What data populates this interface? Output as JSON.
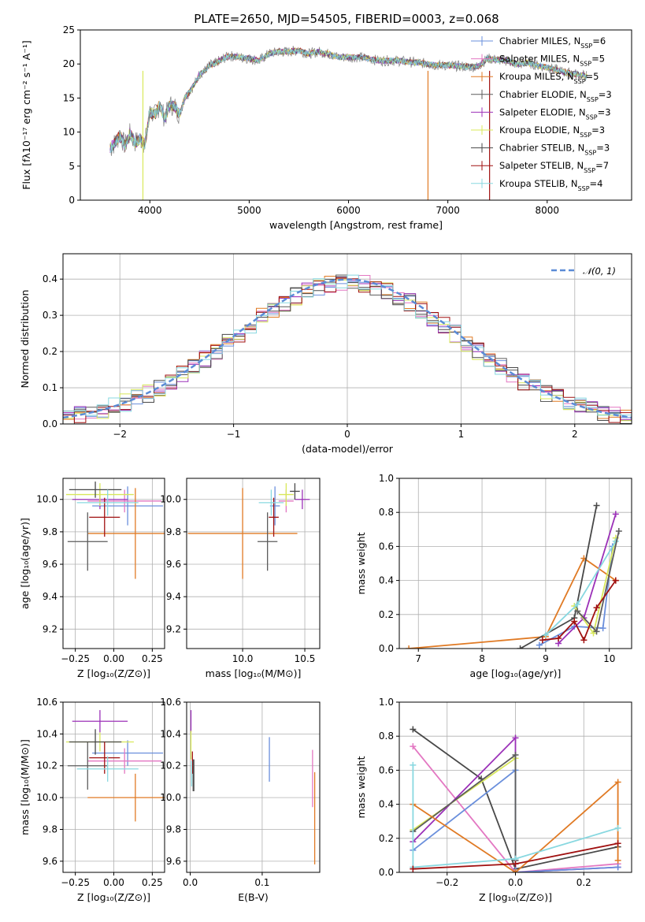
{
  "series": [
    {
      "name": "Chabrier MILES",
      "nssp": "6",
      "color": "#6a8fdc"
    },
    {
      "name": "Salpeter MILES",
      "nssp": "5",
      "color": "#e8e8e8"
    },
    {
      "name": "Kroupa MILES",
      "nssp": "5",
      "color": "#e07a24"
    },
    {
      "name": "Chabrier ELODIE",
      "nssp": "3",
      "color": "#5c5c5c"
    },
    {
      "name": "Salpeter ELODIE",
      "nssp": "3",
      "color": "#9b30b8"
    },
    {
      "name": "Kroupa ELODIE",
      "nssp": "3",
      "color": "#d8e85a"
    },
    {
      "name": "Chabrier STELIB",
      "nssp": "3",
      "color": "#484848"
    },
    {
      "name": "Salpeter STELIB",
      "nssp": "7",
      "color": "#a01010"
    },
    {
      "name": "Kroupa STELIB",
      "nssp": "4",
      "color": "#88d8e0"
    }
  ],
  "chart_data": [
    {
      "type": "line",
      "title": "PLATE=2650, MJD=54505, FIBERID=0003, z=0.068",
      "xlabel": "wavelength [Angstrom, rest frame]",
      "ylabel": "Flux [fλ10⁻¹⁷ erg cm⁻² s⁻¹ A⁻¹]",
      "xlim": [
        3300,
        8850
      ],
      "ylim": [
        0,
        25
      ],
      "xticks": [
        "4000",
        "5000",
        "6000",
        "7000",
        "8000"
      ],
      "yticks": [
        "0",
        "5",
        "10",
        "15",
        "20",
        "25"
      ],
      "legend": "top-right",
      "spectrum_x": [
        3600,
        3650,
        3700,
        3750,
        3800,
        3850,
        3900,
        3950,
        4000,
        4050,
        4100,
        4150,
        4200,
        4250,
        4300,
        4350,
        4400,
        4450,
        4500,
        4550,
        4600,
        4650,
        4700,
        4800,
        4900,
        5000,
        5100,
        5200,
        5300,
        5400,
        5500,
        5600,
        5700,
        5800,
        5900,
        6000,
        6100,
        6200,
        6300,
        6400,
        6500,
        6600,
        6700,
        6800,
        6900,
        7000,
        7100,
        7200,
        7300,
        7400,
        7500,
        7600,
        7700,
        7800,
        7900,
        8000,
        8100,
        8200,
        8300,
        8400
      ],
      "spectrum_y": [
        7.5,
        8.5,
        9.5,
        8.0,
        9.8,
        8.5,
        9.0,
        8.2,
        13.0,
        12.5,
        14.0,
        12.0,
        14.0,
        13.8,
        12.5,
        15.0,
        16.0,
        17.0,
        18.5,
        19.0,
        19.8,
        20.0,
        20.5,
        21.2,
        21.0,
        20.8,
        20.5,
        21.5,
        21.8,
        21.8,
        22.0,
        21.5,
        21.8,
        21.5,
        21.0,
        21.0,
        21.0,
        20.8,
        20.5,
        20.5,
        20.5,
        20.3,
        20.2,
        20.0,
        19.8,
        19.8,
        19.7,
        19.6,
        19.6,
        20.8,
        20.6,
        20.5,
        19.9,
        20.2,
        19.8,
        19.5,
        19.1,
        18.7,
        18.5,
        18.2
      ]
    },
    {
      "type": "area",
      "xlabel": "(data-model)/error",
      "ylabel": "Normed distribution",
      "xlim": [
        -2.5,
        2.5
      ],
      "ylim": [
        0,
        0.47
      ],
      "xticks": [
        "−2",
        "−1",
        "0",
        "1",
        "2"
      ],
      "yticks": [
        "0.0",
        "0.1",
        "0.2",
        "0.3",
        "0.4"
      ],
      "reference_curve": "𝒩(0, 1)",
      "legend": "top-right"
    },
    {
      "type": "scatter",
      "xlabel": "Z [log₁₀(Z/Z⊙)]",
      "ylabel": "age [log₁₀(age/yr)]",
      "xlim": [
        -0.33,
        0.33
      ],
      "ylim": [
        9.08,
        10.13
      ],
      "xticks": [
        "−0.25",
        "0.00",
        "0.25"
      ],
      "yticks": [
        "9.2",
        "9.4",
        "9.6",
        "9.8",
        "10.0"
      ],
      "points": [
        {
          "x": 0.09,
          "xerr": 0.23,
          "y": 9.96,
          "yerr": 0.12,
          "s": 0
        },
        {
          "x": 0.07,
          "xerr": 0.24,
          "y": 9.99,
          "yerr": 0.07,
          "s": 1
        },
        {
          "x": 0.14,
          "xerr": 0.31,
          "y": 9.79,
          "yerr": 0.28,
          "s": 2
        },
        {
          "x": -0.17,
          "xerr": 0.13,
          "y": 9.74,
          "yerr": 0.18,
          "s": 3
        },
        {
          "x": -0.09,
          "xerr": 0.18,
          "y": 10.0,
          "yerr": 0.06,
          "s": 4
        },
        {
          "x": -0.09,
          "xerr": 0.22,
          "y": 10.03,
          "yerr": 0.07,
          "s": 5
        },
        {
          "x": -0.12,
          "xerr": 0.17,
          "y": 10.06,
          "yerr": 0.05,
          "s": 6
        },
        {
          "x": -0.06,
          "xerr": 0.1,
          "y": 9.89,
          "yerr": 0.12,
          "s": 7
        },
        {
          "x": -0.04,
          "xerr": 0.2,
          "y": 9.98,
          "yerr": 0.08,
          "s": 8
        }
      ]
    },
    {
      "type": "scatter",
      "xlabel": "mass [log₁₀(M/M⊙)]",
      "xlim": [
        9.55,
        10.62
      ],
      "ylim": [
        9.08,
        10.13
      ],
      "xticks": [
        "10.0",
        "10.5"
      ],
      "yticks": [
        "9.2",
        "9.4",
        "9.6",
        "9.8",
        "10.0"
      ],
      "points": [
        {
          "x": 10.26,
          "xerr": 0.04,
          "y": 9.96,
          "yerr": 0.12,
          "s": 0
        },
        {
          "x": 10.35,
          "xerr": 0.06,
          "y": 9.99,
          "yerr": 0.07,
          "s": 1
        },
        {
          "x": 10.0,
          "xerr": 0.44,
          "y": 9.79,
          "yerr": 0.28,
          "s": 2
        },
        {
          "x": 10.2,
          "xerr": 0.08,
          "y": 9.74,
          "yerr": 0.18,
          "s": 3
        },
        {
          "x": 10.48,
          "xerr": 0.06,
          "y": 10.0,
          "yerr": 0.06,
          "s": 4
        },
        {
          "x": 10.35,
          "xerr": 0.06,
          "y": 10.03,
          "yerr": 0.07,
          "s": 5
        },
        {
          "x": 10.42,
          "xerr": 0.04,
          "y": 10.05,
          "yerr": 0.05,
          "s": 6
        },
        {
          "x": 10.25,
          "xerr": 0.04,
          "y": 9.89,
          "yerr": 0.12,
          "s": 7
        },
        {
          "x": 10.23,
          "xerr": 0.1,
          "y": 9.98,
          "yerr": 0.08,
          "s": 8
        }
      ]
    },
    {
      "type": "line",
      "xlabel": "age [log₁₀(age/yr)]",
      "ylabel": "mass weight",
      "xlim": [
        6.7,
        10.35
      ],
      "ylim": [
        0,
        1
      ],
      "xticks": [
        "7",
        "8",
        "9",
        "10"
      ],
      "yticks": [
        "0.0",
        "0.2",
        "0.4",
        "0.6",
        "0.8",
        "1.0"
      ],
      "lines": [
        {
          "s": 0,
          "pts": [
            [
              8.9,
              0.02
            ],
            [
              9.45,
              0.13
            ],
            [
              9.9,
              0.12
            ],
            [
              10.05,
              0.6
            ]
          ]
        },
        {
          "s": 2,
          "pts": [
            [
              6.85,
              0.0
            ],
            [
              9.0,
              0.07
            ],
            [
              9.6,
              0.53
            ],
            [
              10.1,
              0.4
            ]
          ]
        },
        {
          "s": 6,
          "pts": [
            [
              8.6,
              0.0
            ],
            [
              9.45,
              0.18
            ],
            [
              9.8,
              0.84
            ]
          ]
        },
        {
          "s": 4,
          "pts": [
            [
              9.2,
              0.03
            ],
            [
              9.6,
              0.18
            ],
            [
              10.1,
              0.79
            ]
          ]
        },
        {
          "s": 5,
          "pts": [
            [
              9.45,
              0.25
            ],
            [
              9.75,
              0.09
            ],
            [
              10.1,
              0.65
            ]
          ]
        },
        {
          "s": 8,
          "pts": [
            [
              9.0,
              0.08
            ],
            [
              9.5,
              0.26
            ],
            [
              10.1,
              0.63
            ]
          ]
        },
        {
          "s": 3,
          "pts": [
            [
              9.5,
              0.22
            ],
            [
              9.8,
              0.1
            ],
            [
              10.15,
              0.69
            ]
          ]
        },
        {
          "s": 7,
          "pts": [
            [
              8.95,
              0.05
            ],
            [
              9.2,
              0.06
            ],
            [
              9.45,
              0.16
            ],
            [
              9.6,
              0.05
            ],
            [
              9.8,
              0.24
            ],
            [
              10.1,
              0.4
            ]
          ]
        }
      ]
    },
    {
      "type": "scatter",
      "xlabel": "Z [log₁₀(Z/Z⊙)]",
      "ylabel": "mass [log₁₀(M/M⊙)]",
      "xlim": [
        -0.33,
        0.33
      ],
      "ylim": [
        9.53,
        10.6
      ],
      "xticks": [
        "−0.25",
        "0.00",
        "0.25"
      ],
      "yticks": [
        "9.6",
        "9.8",
        "10.0",
        "10.2",
        "10.4",
        "10.6"
      ],
      "points": [
        {
          "x": 0.09,
          "xerr": 0.23,
          "y": 10.28,
          "yerr": 0.08,
          "s": 0
        },
        {
          "x": 0.07,
          "xerr": 0.24,
          "y": 10.23,
          "yerr": 0.08,
          "s": 1
        },
        {
          "x": 0.14,
          "xerr": 0.31,
          "y": 10.0,
          "yerr": 0.15,
          "s": 2
        },
        {
          "x": -0.17,
          "xerr": 0.13,
          "y": 10.2,
          "yerr": 0.15,
          "s": 3
        },
        {
          "x": -0.09,
          "xerr": 0.18,
          "y": 10.48,
          "yerr": 0.07,
          "s": 4
        },
        {
          "x": -0.09,
          "xerr": 0.22,
          "y": 10.35,
          "yerr": 0.06,
          "s": 5
        },
        {
          "x": -0.12,
          "xerr": 0.17,
          "y": 10.35,
          "yerr": 0.08,
          "s": 6
        },
        {
          "x": -0.06,
          "xerr": 0.1,
          "y": 10.25,
          "yerr": 0.1,
          "s": 7
        },
        {
          "x": -0.04,
          "xerr": 0.2,
          "y": 10.18,
          "yerr": 0.08,
          "s": 8
        }
      ]
    },
    {
      "type": "scatter",
      "xlabel": "E(B-V)",
      "xlim": [
        -0.005,
        0.18
      ],
      "ylim": [
        9.53,
        10.6
      ],
      "xticks": [
        "0.0",
        "0.1"
      ],
      "yticks": [
        "9.6",
        "9.8",
        "10.0",
        "10.2",
        "10.4",
        "10.6"
      ],
      "points": [
        {
          "x": 0.11,
          "y": 10.24,
          "yerr": 0.14,
          "s": 0
        },
        {
          "x": 0.17,
          "y": 10.12,
          "yerr": 0.18,
          "s": 1
        },
        {
          "x": 0.173,
          "y": 9.87,
          "yerr": 0.29,
          "s": 2
        },
        {
          "x": 0.004,
          "y": 10.14,
          "yerr": 0.1,
          "s": 3
        },
        {
          "x": 0.001,
          "y": 10.48,
          "yerr": 0.07,
          "s": 4
        },
        {
          "x": 0.001,
          "y": 10.33,
          "yerr": 0.09,
          "s": 5
        },
        {
          "x": 0.005,
          "y": 10.14,
          "yerr": 0.1,
          "s": 6
        },
        {
          "x": 0.003,
          "y": 10.22,
          "yerr": 0.07,
          "s": 7
        },
        {
          "x": 0.002,
          "y": 10.15,
          "yerr": 0.08,
          "s": 8
        }
      ]
    },
    {
      "type": "line",
      "xlabel": "Z [log₁₀(Z/Z⊙)]",
      "ylabel": "mass weight",
      "xlim": [
        -0.34,
        0.34
      ],
      "ylim": [
        0,
        1
      ],
      "xticks": [
        "−0.2",
        "0.0",
        "0.2"
      ],
      "yticks": [
        "0.0",
        "0.2",
        "0.4",
        "0.6",
        "0.8",
        "1.0"
      ],
      "lines": [
        {
          "s": 6,
          "pts": [
            [
              -0.3,
              0.84
            ],
            [
              -0.1,
              0.55
            ],
            [
              0.0,
              0.02
            ],
            [
              0.3,
              0.15
            ]
          ]
        },
        {
          "s": 1,
          "pts": [
            [
              -0.3,
              0.74
            ],
            [
              0.0,
              0.0
            ],
            [
              0.3,
              0.05
            ]
          ]
        },
        {
          "s": 4,
          "pts": [
            [
              -0.3,
              0.18
            ],
            [
              0.0,
              0.79
            ],
            [
              0.0,
              0.0
            ],
            [
              0.3,
              0.03
            ]
          ]
        },
        {
          "s": 5,
          "pts": [
            [
              -0.3,
              0.25
            ],
            [
              0.0,
              0.67
            ],
            [
              0.0,
              0.08
            ]
          ]
        },
        {
          "s": 0,
          "pts": [
            [
              -0.3,
              0.13
            ],
            [
              0.0,
              0.6
            ],
            [
              0.0,
              0.0
            ],
            [
              0.3,
              0.03
            ]
          ]
        },
        {
          "s": 3,
          "pts": [
            [
              -0.3,
              0.24
            ],
            [
              0.0,
              0.69
            ],
            [
              0.0,
              0.07
            ]
          ]
        },
        {
          "s": 2,
          "pts": [
            [
              -0.3,
              0.4
            ],
            [
              0.0,
              0.0
            ],
            [
              0.3,
              0.53
            ],
            [
              0.3,
              0.07
            ]
          ]
        },
        {
          "s": 8,
          "pts": [
            [
              -0.3,
              0.63
            ],
            [
              -0.3,
              0.03
            ],
            [
              0.0,
              0.08
            ],
            [
              0.3,
              0.26
            ]
          ]
        },
        {
          "s": 7,
          "pts": [
            [
              -0.3,
              0.02
            ],
            [
              0.0,
              0.05
            ],
            [
              0.3,
              0.17
            ]
          ]
        }
      ]
    }
  ]
}
